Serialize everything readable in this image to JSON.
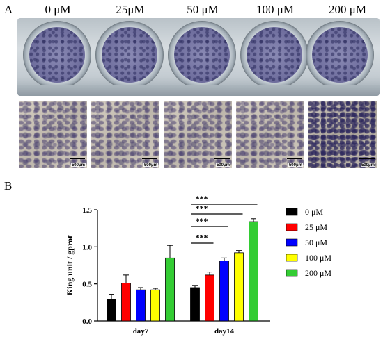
{
  "panels": {
    "a": "A",
    "b": "B"
  },
  "concentrations": [
    "0 μM",
    "25μM",
    "50 μM",
    "100 μM",
    "200 μM"
  ],
  "scale_bar_label": "500μm",
  "chart_data": {
    "type": "bar",
    "categories": [
      "day7",
      "day14"
    ],
    "ylabel": "King unit / gprot",
    "ylim": [
      0,
      1.5
    ],
    "yticks": [
      "0.0",
      "0.5",
      "1.0",
      "1.5"
    ],
    "legend_position": "right",
    "series": [
      {
        "name": "0 μM",
        "color": "#000000",
        "values": [
          0.29,
          0.45
        ],
        "errors": [
          0.07,
          0.03
        ]
      },
      {
        "name": "25 μM",
        "color": "#ff0000",
        "values": [
          0.51,
          0.62
        ],
        "errors": [
          0.11,
          0.04
        ]
      },
      {
        "name": "50 μM",
        "color": "#0000ff",
        "values": [
          0.42,
          0.81
        ],
        "errors": [
          0.03,
          0.04
        ]
      },
      {
        "name": "100 μM",
        "color": "#ffff00",
        "values": [
          0.42,
          0.92
        ],
        "errors": [
          0.02,
          0.03
        ]
      },
      {
        "name": "200 μM",
        "color": "#33cc33",
        "values": [
          0.85,
          1.34
        ],
        "errors": [
          0.17,
          0.04
        ]
      }
    ],
    "significance": [
      {
        "label": "***",
        "from_series": 0,
        "to_series": 1,
        "category": 1
      },
      {
        "label": "***",
        "from_series": 0,
        "to_series": 2,
        "category": 1
      },
      {
        "label": "***",
        "from_series": 0,
        "to_series": 3,
        "category": 1
      },
      {
        "label": "***",
        "from_series": 0,
        "to_series": 4,
        "category": 1
      }
    ]
  }
}
